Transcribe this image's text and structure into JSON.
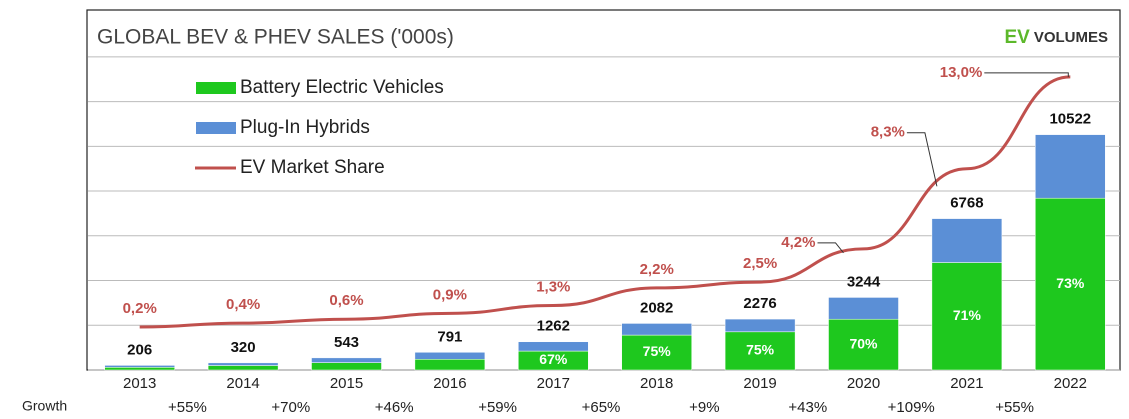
{
  "chart_data": {
    "type": "bar",
    "title": "GLOBAL BEV & PHEV SALES ('000s)",
    "logo": [
      "EV",
      "VOLUMES"
    ],
    "categories": [
      "2013",
      "2014",
      "2015",
      "2016",
      "2017",
      "2018",
      "2019",
      "2020",
      "2021",
      "2022"
    ],
    "series": [
      {
        "name": "Battery Electric Vehicles",
        "color": "#1ec81e",
        "values": [
          120,
          200,
          330,
          480,
          846,
          1561,
          1707,
          2271,
          4805,
          7681
        ],
        "value_labels": [
          null,
          null,
          null,
          null,
          "67%",
          "75%",
          "75%",
          "70%",
          "71%",
          "73%"
        ]
      },
      {
        "name": "Plug-In Hybrids",
        "color": "#5b8fd6",
        "values": [
          86,
          120,
          213,
          311,
          416,
          521,
          569,
          973,
          1963,
          2841
        ]
      },
      {
        "name": "EV Market Share",
        "color": "#c0504d",
        "type": "line",
        "axis": "y2",
        "values": [
          0.2,
          0.4,
          0.6,
          0.9,
          1.3,
          2.2,
          2.5,
          4.2,
          8.3,
          13.0
        ],
        "value_labels": [
          "0,2%",
          "0,4%",
          "0,6%",
          "0,9%",
          "1,3%",
          "2,2%",
          "2,5%",
          "4,2%",
          "8,3%",
          "13,0%"
        ]
      }
    ],
    "totals": [
      206,
      320,
      543,
      791,
      1262,
      2082,
      2276,
      3244,
      6768,
      10522
    ],
    "growth_label": "Growth",
    "growth": [
      "+55%",
      "+70%",
      "+46%",
      "+59%",
      "+65%",
      "+9%",
      "+43%",
      "+109%",
      "+55%"
    ],
    "ylim": [
      0,
      15200
    ],
    "yticks": [
      0,
      2000,
      4000,
      6000,
      8000,
      10000,
      12000,
      14000
    ],
    "y2lim": [
      -2,
      15.4
    ],
    "grid": true
  }
}
